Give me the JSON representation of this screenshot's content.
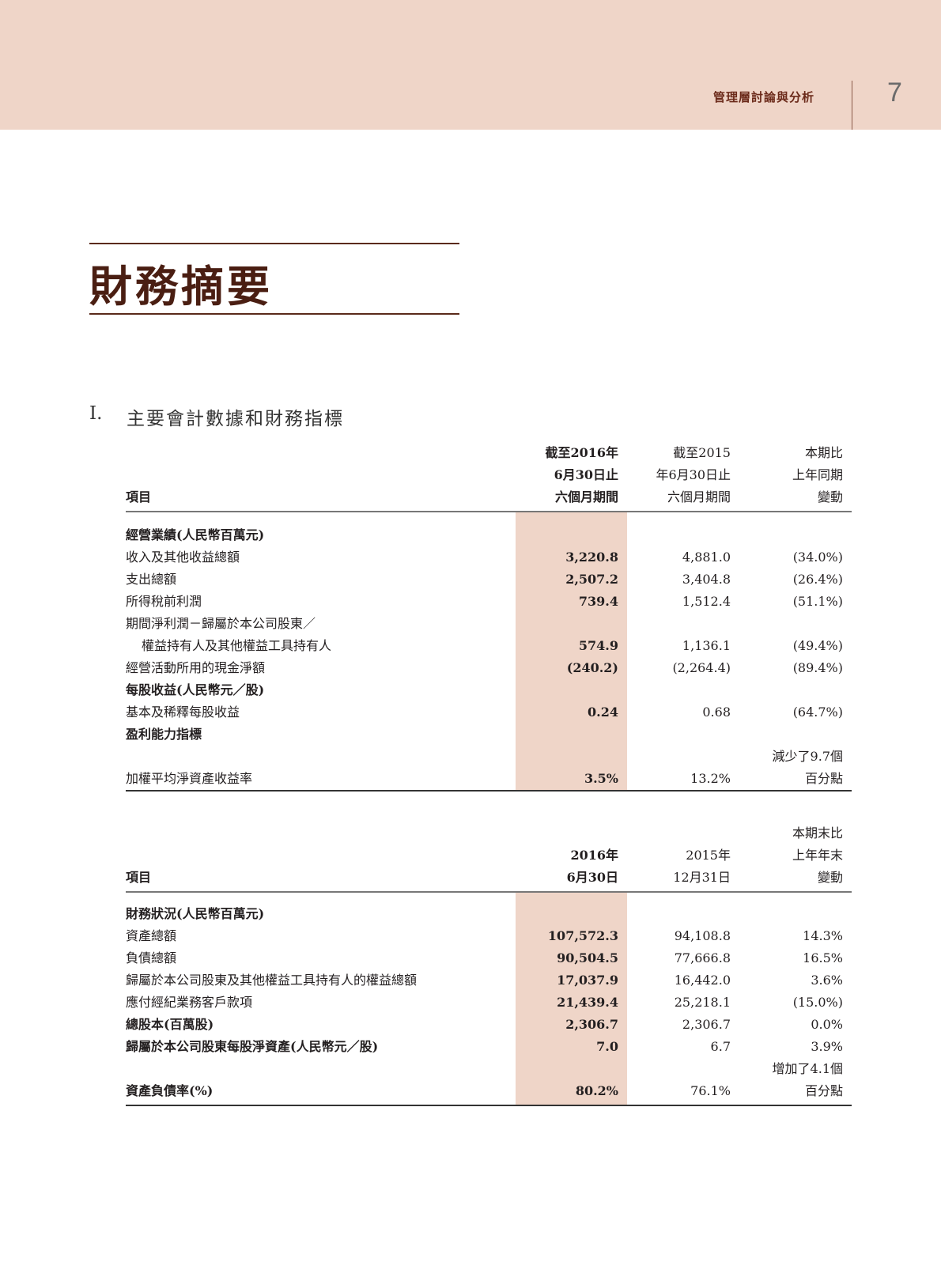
{
  "header": {
    "running_title": "管理層討論與分析",
    "page_number": "7"
  },
  "title": "財務摘要",
  "section": {
    "number": "I.",
    "title": "主要會計數據和財務指標"
  },
  "table1": {
    "headers": {
      "item": "項目",
      "col1": [
        "截至2016年",
        "6月30日止",
        "六個月期間"
      ],
      "col2": [
        "截至2015",
        "年6月30日止",
        "六個月期間"
      ],
      "col3": [
        "本期比",
        "上年同期",
        "變動"
      ]
    },
    "rows": [
      {
        "label": "經營業績(人民幣百萬元)",
        "bold": true,
        "v1": "",
        "v2": "",
        "v3": ""
      },
      {
        "label": "收入及其他收益總額",
        "v1": "3,220.8",
        "v2": "4,881.0",
        "v3": "(34.0%)"
      },
      {
        "label": "支出總額",
        "v1": "2,507.2",
        "v2": "3,404.8",
        "v3": "(26.4%)"
      },
      {
        "label": "所得稅前利潤",
        "v1": "739.4",
        "v2": "1,512.4",
        "v3": "(51.1%)"
      },
      {
        "label": "期間淨利潤－歸屬於本公司股東／",
        "v1": "",
        "v2": "",
        "v3": ""
      },
      {
        "label": "權益持有人及其他權益工具持有人",
        "indent": true,
        "v1": "574.9",
        "v2": "1,136.1",
        "v3": "(49.4%)"
      },
      {
        "label": "經營活動所用的現金淨額",
        "v1": "(240.2)",
        "v2": "(2,264.4)",
        "v3": "(89.4%)"
      },
      {
        "label": "每股收益(人民幣元／股)",
        "bold": true,
        "v1": "",
        "v2": "",
        "v3": ""
      },
      {
        "label": "基本及稀釋每股收益",
        "v1": "0.24",
        "v2": "0.68",
        "v3": "(64.7%)"
      },
      {
        "label": "盈利能力指標",
        "bold": true,
        "v1": "",
        "v2": "",
        "v3": ""
      },
      {
        "label": "",
        "v1": "",
        "v2": "",
        "v3": "減少了9.7個"
      },
      {
        "label": "加權平均淨資產收益率",
        "v1": "3.5%",
        "v2": "13.2%",
        "v3": "百分點"
      }
    ]
  },
  "table2": {
    "headers": {
      "item": "項目",
      "col1": [
        "",
        "2016年",
        "6月30日"
      ],
      "col2": [
        "",
        "2015年",
        "12月31日"
      ],
      "col3": [
        "本期末比",
        "上年年末",
        "變動"
      ]
    },
    "rows": [
      {
        "label": "財務狀況(人民幣百萬元)",
        "bold": true,
        "v1": "",
        "v2": "",
        "v3": ""
      },
      {
        "label": "資產總額",
        "v1": "107,572.3",
        "v2": "94,108.8",
        "v3": "14.3%"
      },
      {
        "label": "負債總額",
        "v1": "90,504.5",
        "v2": "77,666.8",
        "v3": "16.5%"
      },
      {
        "label": "歸屬於本公司股東及其他權益工具持有人的權益總額",
        "v1": "17,037.9",
        "v2": "16,442.0",
        "v3": "3.6%"
      },
      {
        "label": "應付經紀業務客戶款項",
        "v1": "21,439.4",
        "v2": "25,218.1",
        "v3": "(15.0%)"
      },
      {
        "label": "總股本(百萬股)",
        "bold": true,
        "v1": "2,306.7",
        "v2": "2,306.7",
        "v3": "0.0%"
      },
      {
        "label": "歸屬於本公司股東每股淨資產(人民幣元／股)",
        "bold": true,
        "v1": "7.0",
        "v2": "6.7",
        "v3": "3.9%"
      },
      {
        "label": "",
        "v1": "",
        "v2": "",
        "v3": "增加了4.1個"
      },
      {
        "label": "資產負債率(%)",
        "bold": true,
        "v1": "80.2%",
        "v2": "76.1%",
        "v3": "百分點"
      }
    ]
  }
}
